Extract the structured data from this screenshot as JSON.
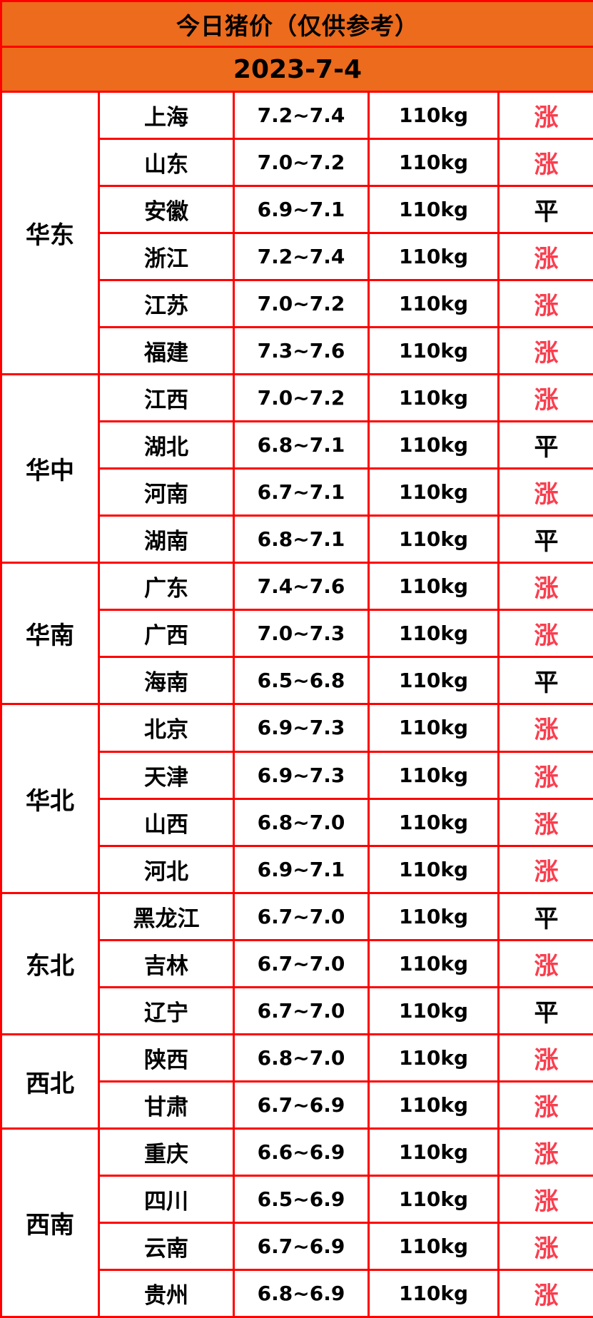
{
  "header": {
    "title": "今日猪价（仅供参考）",
    "date": "2023-7-4"
  },
  "chart_data": {
    "type": "table",
    "title": "今日猪价（仅供参考）",
    "subtitle": "2023-7-4",
    "regions": [
      {
        "name": "华东",
        "rows": [
          {
            "province": "上海",
            "price": "7.2~7.4",
            "weight": "110kg",
            "trend": "涨"
          },
          {
            "province": "山东",
            "price": "7.0~7.2",
            "weight": "110kg",
            "trend": "涨"
          },
          {
            "province": "安徽",
            "price": "6.9~7.1",
            "weight": "110kg",
            "trend": "平"
          },
          {
            "province": "浙江",
            "price": "7.2~7.4",
            "weight": "110kg",
            "trend": "涨"
          },
          {
            "province": "江苏",
            "price": "7.0~7.2",
            "weight": "110kg",
            "trend": "涨"
          },
          {
            "province": "福建",
            "price": "7.3~7.6",
            "weight": "110kg",
            "trend": "涨"
          }
        ]
      },
      {
        "name": "华中",
        "rows": [
          {
            "province": "江西",
            "price": "7.0~7.2",
            "weight": "110kg",
            "trend": "涨"
          },
          {
            "province": "湖北",
            "price": "6.8~7.1",
            "weight": "110kg",
            "trend": "平"
          },
          {
            "province": "河南",
            "price": "6.7~7.1",
            "weight": "110kg",
            "trend": "涨"
          },
          {
            "province": "湖南",
            "price": "6.8~7.1",
            "weight": "110kg",
            "trend": "平"
          }
        ]
      },
      {
        "name": "华南",
        "rows": [
          {
            "province": "广东",
            "price": "7.4~7.6",
            "weight": "110kg",
            "trend": "涨"
          },
          {
            "province": "广西",
            "price": "7.0~7.3",
            "weight": "110kg",
            "trend": "涨"
          },
          {
            "province": "海南",
            "price": "6.5~6.8",
            "weight": "110kg",
            "trend": "平"
          }
        ]
      },
      {
        "name": "华北",
        "rows": [
          {
            "province": "北京",
            "price": "6.9~7.3",
            "weight": "110kg",
            "trend": "涨"
          },
          {
            "province": "天津",
            "price": "6.9~7.3",
            "weight": "110kg",
            "trend": "涨"
          },
          {
            "province": "山西",
            "price": "6.8~7.0",
            "weight": "110kg",
            "trend": "涨"
          },
          {
            "province": "河北",
            "price": "6.9~7.1",
            "weight": "110kg",
            "trend": "涨"
          }
        ]
      },
      {
        "name": "东北",
        "rows": [
          {
            "province": "黑龙江",
            "price": "6.7~7.0",
            "weight": "110kg",
            "trend": "平"
          },
          {
            "province": "吉林",
            "price": "6.7~7.0",
            "weight": "110kg",
            "trend": "涨"
          },
          {
            "province": "辽宁",
            "price": "6.7~7.0",
            "weight": "110kg",
            "trend": "平"
          }
        ]
      },
      {
        "name": "西北",
        "rows": [
          {
            "province": "陕西",
            "price": "6.8~7.0",
            "weight": "110kg",
            "trend": "涨"
          },
          {
            "province": "甘肃",
            "price": "6.7~6.9",
            "weight": "110kg",
            "trend": "涨"
          }
        ]
      },
      {
        "name": "西南",
        "rows": [
          {
            "province": "重庆",
            "price": "6.6~6.9",
            "weight": "110kg",
            "trend": "涨"
          },
          {
            "province": "四川",
            "price": "6.5~6.9",
            "weight": "110kg",
            "trend": "涨"
          },
          {
            "province": "云南",
            "price": "6.7~6.9",
            "weight": "110kg",
            "trend": "涨"
          },
          {
            "province": "贵州",
            "price": "6.8~6.9",
            "weight": "110kg",
            "trend": "涨"
          }
        ]
      }
    ]
  },
  "trends": {
    "up": {
      "label": "涨",
      "color": "#FA3E4E"
    },
    "flat": {
      "label": "平",
      "color": "#000000"
    }
  },
  "colors": {
    "header_orange": "#EC6B1C",
    "grid_red": "#FE0000",
    "body_bg": "#FFFFFF",
    "up_text": "#FA3E4E",
    "flat_text": "#000000"
  }
}
